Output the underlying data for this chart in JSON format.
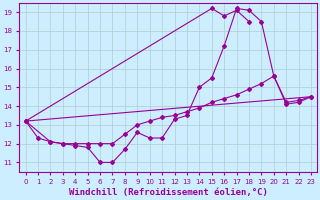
{
  "background_color": "#cceeff",
  "line_color": "#990099",
  "grid_color": "#b0ccd0",
  "xlabel": "Windchill (Refroidissement éolien,°C)",
  "xlabel_fontsize": 6.5,
  "xlim": [
    -0.5,
    23.5
  ],
  "ylim": [
    10.5,
    19.5
  ],
  "xticks": [
    0,
    1,
    2,
    3,
    4,
    5,
    6,
    7,
    8,
    9,
    10,
    11,
    12,
    13,
    14,
    15,
    16,
    17,
    18,
    19,
    20,
    21,
    22,
    23
  ],
  "yticks": [
    11,
    12,
    13,
    14,
    15,
    16,
    17,
    18,
    19
  ],
  "line1": {
    "x": [
      0,
      1,
      2,
      3,
      4,
      5,
      6,
      7,
      8,
      9,
      10,
      11,
      12,
      13,
      14,
      15,
      16,
      17,
      18,
      19,
      20,
      21,
      22,
      23
    ],
    "y": [
      13.2,
      12.3,
      12.1,
      12.0,
      11.9,
      11.8,
      11.0,
      11.0,
      11.7,
      12.6,
      12.3,
      12.3,
      13.3,
      13.5,
      15.0,
      15.5,
      17.2,
      19.2,
      19.1,
      18.5,
      15.6,
      14.1,
      14.2,
      14.5
    ]
  },
  "line2": {
    "comment": "steep line: x=0 y=13 up to x=15 y=19.2 then dip/peak x=16 y=18.8 x=17 y=19.1 x=18 y=18.5",
    "x": [
      0,
      15,
      16,
      17,
      18
    ],
    "y": [
      13.2,
      19.2,
      18.8,
      19.1,
      18.5
    ]
  },
  "line3": {
    "x": [
      0,
      2,
      3,
      4,
      5,
      6,
      7,
      8,
      9,
      10,
      11,
      12,
      13,
      14,
      15,
      16,
      17,
      18,
      19,
      20,
      21,
      22,
      23
    ],
    "y": [
      13.2,
      12.1,
      12.0,
      12.0,
      12.0,
      12.0,
      12.0,
      12.5,
      13.0,
      13.2,
      13.4,
      13.5,
      13.7,
      13.9,
      14.2,
      14.4,
      14.6,
      14.9,
      15.2,
      15.6,
      14.2,
      14.3,
      14.5
    ]
  },
  "line4": {
    "x": [
      0,
      23
    ],
    "y": [
      13.2,
      14.5
    ]
  }
}
